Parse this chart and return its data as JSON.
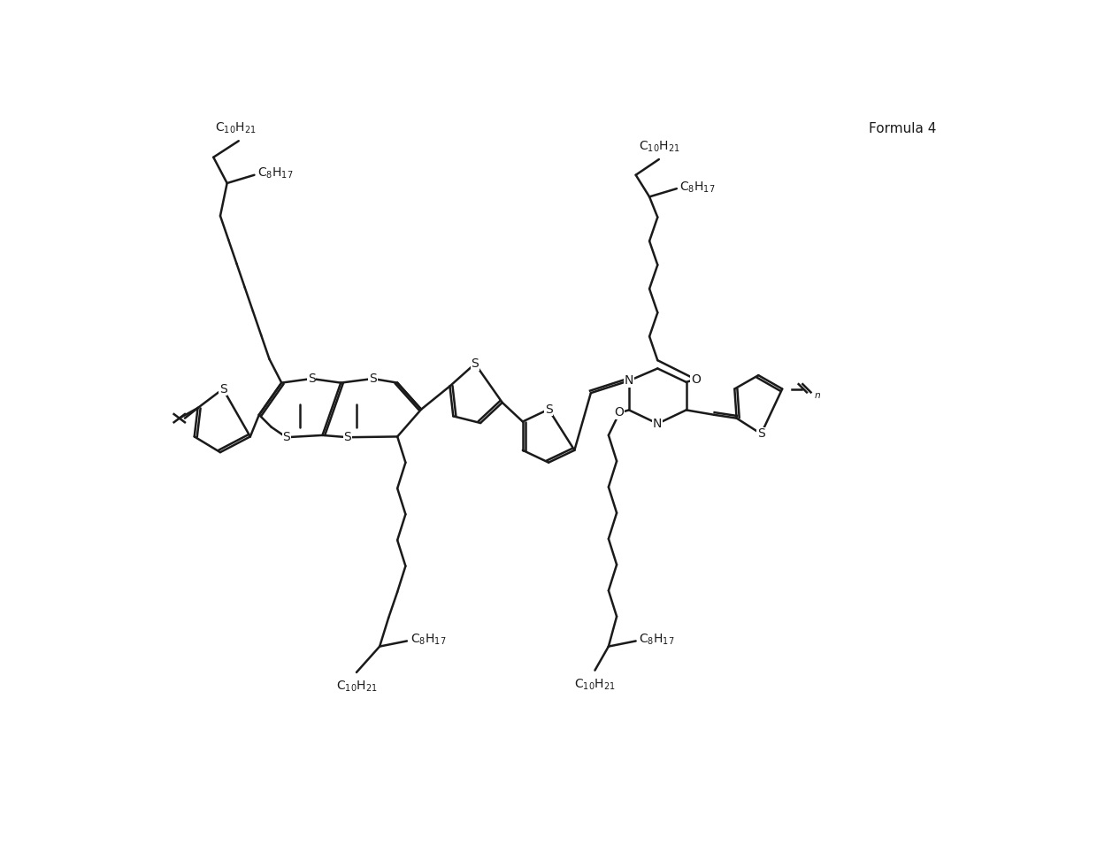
{
  "title": "Formula 4",
  "bg_color": "#ffffff",
  "line_color": "#1a1a1a",
  "line_width": 1.8,
  "font_size": 11,
  "fig_width": 12.4,
  "fig_height": 9.55,
  "formula_label": "Formula 4",
  "label_tl_c10": "C$_{10}$H$_{21}$",
  "label_tl_c8": "C$_8$H$_{17}$",
  "label_tr_c10": "C$_{10}$H$_{21}$",
  "label_tr_c8": "C$_8$H$_{17}$",
  "label_bc_c8": "C$_8$H$_{17}$",
  "label_bc_c10": "C$_{10}$H$_{21}$",
  "label_br_c8": "C$_8$H$_{17}$",
  "label_br_c10": "C$_{10}$H$_{21}$"
}
